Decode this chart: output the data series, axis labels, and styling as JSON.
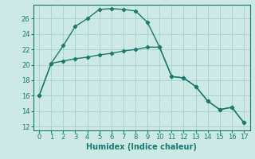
{
  "xlabel": "Humidex (Indice chaleur)",
  "bg_color": "#cce9e5",
  "line_color": "#1a7a6e",
  "grid_color": "#aad4cf",
  "x_ticks": [
    0,
    1,
    2,
    3,
    4,
    5,
    6,
    7,
    8,
    9,
    10,
    11,
    12,
    13,
    14,
    15,
    16,
    17
  ],
  "y_ticks": [
    12,
    14,
    16,
    18,
    20,
    22,
    24,
    26
  ],
  "xlim": [
    -0.5,
    17.5
  ],
  "ylim": [
    11.5,
    27.8
  ],
  "line1_x": [
    0,
    1,
    2,
    3,
    4,
    5,
    6,
    7,
    8,
    9,
    10,
    11,
    12,
    13,
    14,
    15,
    16,
    17
  ],
  "line1_y": [
    16,
    20.2,
    22.5,
    25.0,
    26.0,
    27.2,
    27.3,
    27.2,
    27.0,
    25.5,
    22.3,
    18.5,
    18.3,
    17.2,
    15.3,
    14.2,
    14.5,
    12.5
  ],
  "line2_x": [
    0,
    1,
    2,
    3,
    4,
    5,
    6,
    7,
    8,
    9,
    10,
    11,
    12,
    13,
    14,
    15,
    16,
    17
  ],
  "line2_y": [
    16,
    20.2,
    20.5,
    20.8,
    21.0,
    21.3,
    21.5,
    21.8,
    22.0,
    22.3,
    22.3,
    18.5,
    18.3,
    17.2,
    15.3,
    14.2,
    14.5,
    12.5
  ],
  "tick_fontsize": 6,
  "xlabel_fontsize": 7,
  "marker": "D",
  "markersize": 2.2,
  "linewidth": 1.0
}
